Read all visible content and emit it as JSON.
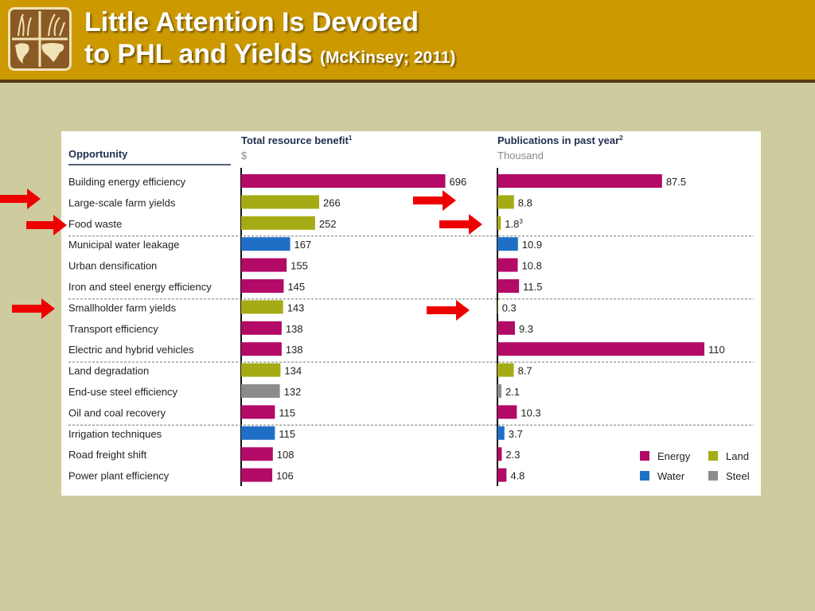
{
  "header": {
    "title_line1": "Little Attention Is Devoted",
    "title_line2": "to PHL and Yields",
    "title_source": "(McKinsey; 2011)"
  },
  "colors": {
    "header_bg": "#cc9900",
    "slide_bg": "#cecb9e",
    "Energy": "#b30a68",
    "Land": "#a5ab14",
    "Water": "#1f6fc6",
    "Steel": "#8c8c8c",
    "arrow": "#ee0000"
  },
  "logo": {
    "icon": "world-map-plants-logo"
  },
  "chart_data": {
    "type": "bar",
    "column_header": "Opportunity",
    "series": [
      {
        "name": "Total resource benefit",
        "superscript": "1",
        "unit_label": "$"
      },
      {
        "name": "Publications in past year",
        "superscript": "2",
        "unit_label": "Thousand"
      }
    ],
    "rows": [
      {
        "label": "Building energy efficiency",
        "category": "Energy",
        "benefit": 696,
        "publications": 87.5
      },
      {
        "label": "Large-scale farm yields",
        "category": "Land",
        "benefit": 266,
        "publications": 8.8
      },
      {
        "label": "Food waste",
        "category": "Land",
        "benefit": 252,
        "publications": 1.8,
        "publications_note": "3"
      },
      {
        "label": "Municipal water leakage",
        "category": "Water",
        "benefit": 167,
        "publications": 10.9
      },
      {
        "label": "Urban densification",
        "category": "Energy",
        "benefit": 155,
        "publications": 10.8
      },
      {
        "label": "Iron and steel energy efficiency",
        "category": "Energy",
        "benefit": 145,
        "publications": 11.5
      },
      {
        "label": "Smallholder farm yields",
        "category": "Land",
        "benefit": 143,
        "publications": 0.3
      },
      {
        "label": "Transport efficiency",
        "category": "Energy",
        "benefit": 138,
        "publications": 9.3
      },
      {
        "label": "Electric and hybrid vehicles",
        "category": "Energy",
        "benefit": 138,
        "publications": 110.0
      },
      {
        "label": "Land degradation",
        "category": "Land",
        "benefit": 134,
        "publications": 8.7
      },
      {
        "label": "End-use steel efficiency",
        "category": "Steel",
        "benefit": 132,
        "publications": 2.1
      },
      {
        "label": "Oil and coal recovery",
        "category": "Energy",
        "benefit": 115,
        "publications": 10.3
      },
      {
        "label": "Irrigation techniques",
        "category": "Water",
        "benefit": 115,
        "publications": 3.7
      },
      {
        "label": "Road freight shift",
        "category": "Energy",
        "benefit": 108,
        "publications": 2.3
      },
      {
        "label": "Power plant efficiency",
        "category": "Energy",
        "benefit": 106,
        "publications": 4.8
      }
    ],
    "group_dividers_after_rows": [
      3,
      6,
      9,
      12
    ],
    "legend": [
      "Energy",
      "Land",
      "Water",
      "Steel"
    ],
    "legend_position": "bottom-right",
    "highlighted_rows": [
      "Large-scale farm yields",
      "Food waste",
      "Smallholder farm yields"
    ],
    "benefit_range": [
      0,
      700
    ],
    "publications_range": [
      0,
      110
    ]
  }
}
